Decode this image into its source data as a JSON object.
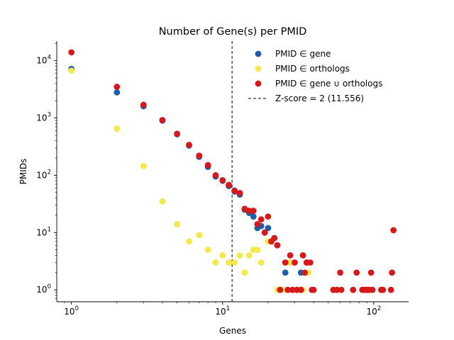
{
  "chart_data": {
    "type": "scatter",
    "title": "Number of Gene(s) per PMID",
    "xlabel": "Genes",
    "ylabel": "PMIDs",
    "xscale": "log",
    "yscale": "log",
    "xlim": [
      0.8,
      170
    ],
    "ylim": [
      0.62,
      22000
    ],
    "x_ticks": [
      {
        "value": 1,
        "base": "10",
        "exp": "0"
      },
      {
        "value": 10,
        "base": "10",
        "exp": "1"
      },
      {
        "value": 100,
        "base": "10",
        "exp": "2"
      }
    ],
    "y_ticks": [
      {
        "value": 1,
        "base": "10",
        "exp": "0"
      },
      {
        "value": 10,
        "base": "10",
        "exp": "1"
      },
      {
        "value": 100,
        "base": "10",
        "exp": "2"
      },
      {
        "value": 1000,
        "base": "10",
        "exp": "3"
      },
      {
        "value": 10000,
        "base": "10",
        "exp": "4"
      }
    ],
    "grid": false,
    "legend_position": "top-right",
    "series": [
      {
        "name": "PMID ∈ gene",
        "color": "#1f5fa8",
        "points": [
          [
            1,
            7200
          ],
          [
            2,
            2800
          ],
          [
            3,
            1600
          ],
          [
            4,
            900
          ],
          [
            5,
            520
          ],
          [
            6,
            330
          ],
          [
            7,
            210
          ],
          [
            8,
            140
          ],
          [
            9,
            95
          ],
          [
            10,
            80
          ],
          [
            11,
            65
          ],
          [
            12,
            52
          ],
          [
            13,
            46
          ],
          [
            14,
            25
          ],
          [
            15,
            22
          ],
          [
            16,
            19
          ],
          [
            17,
            12
          ],
          [
            18,
            13
          ],
          [
            19,
            10
          ],
          [
            20,
            12
          ],
          [
            21,
            7
          ],
          [
            22,
            8
          ],
          [
            23,
            6
          ],
          [
            26,
            2
          ],
          [
            28,
            3
          ],
          [
            33,
            2
          ],
          [
            36,
            3
          ]
        ]
      },
      {
        "name": "PMID ∈ orthologs",
        "color": "#f5e84a",
        "points": [
          [
            1,
            6700
          ],
          [
            2,
            650
          ],
          [
            3,
            145
          ],
          [
            4,
            35
          ],
          [
            5,
            14
          ],
          [
            6,
            7
          ],
          [
            7,
            9
          ],
          [
            8,
            5
          ],
          [
            9,
            3
          ],
          [
            10,
            4
          ],
          [
            11,
            3
          ],
          [
            12,
            3
          ],
          [
            13,
            4
          ],
          [
            14,
            2
          ],
          [
            15,
            4
          ],
          [
            16,
            5
          ],
          [
            17,
            5
          ],
          [
            18,
            3
          ],
          [
            20,
            7
          ],
          [
            21,
            7
          ],
          [
            23,
            1
          ],
          [
            25,
            1
          ],
          [
            28,
            3
          ],
          [
            30,
            1
          ],
          [
            32,
            1
          ],
          [
            34,
            1
          ],
          [
            37,
            2
          ]
        ]
      },
      {
        "name": "PMID ∈ gene ∪ orthologs",
        "color": "#d7191c",
        "points": [
          [
            1,
            14000
          ],
          [
            2,
            3500
          ],
          [
            3,
            1700
          ],
          [
            4,
            920
          ],
          [
            5,
            530
          ],
          [
            6,
            340
          ],
          [
            7,
            220
          ],
          [
            8,
            150
          ],
          [
            9,
            100
          ],
          [
            10,
            82
          ],
          [
            11,
            68
          ],
          [
            12,
            54
          ],
          [
            13,
            49
          ],
          [
            14,
            26
          ],
          [
            15,
            24
          ],
          [
            16,
            24
          ],
          [
            17,
            14
          ],
          [
            18,
            17
          ],
          [
            19,
            10
          ],
          [
            20,
            19
          ],
          [
            21,
            7
          ],
          [
            22,
            8
          ],
          [
            23,
            6
          ],
          [
            24,
            1
          ],
          [
            26,
            3
          ],
          [
            27,
            1
          ],
          [
            28,
            4
          ],
          [
            29,
            1
          ],
          [
            30,
            3
          ],
          [
            31,
            1
          ],
          [
            33,
            1
          ],
          [
            34,
            4
          ],
          [
            35,
            2
          ],
          [
            36,
            3
          ],
          [
            38,
            3
          ],
          [
            39,
            1
          ],
          [
            40,
            1
          ],
          [
            54,
            1
          ],
          [
            57,
            1
          ],
          [
            60,
            2
          ],
          [
            61,
            1
          ],
          [
            73,
            1
          ],
          [
            77,
            2
          ],
          [
            84,
            1
          ],
          [
            87,
            1
          ],
          [
            90,
            1
          ],
          [
            93,
            1
          ],
          [
            96,
            2
          ],
          [
            98,
            1
          ],
          [
            112,
            1
          ],
          [
            115,
            1
          ],
          [
            130,
            1
          ],
          [
            132,
            2
          ],
          [
            135,
            11
          ]
        ]
      }
    ],
    "threshold": {
      "value": 11.556,
      "label": "Z-score = 2 (11.556)"
    }
  }
}
